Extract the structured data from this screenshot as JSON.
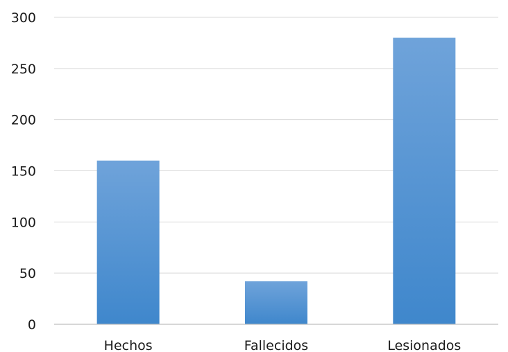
{
  "chart_data": {
    "type": "bar",
    "title": "",
    "xlabel": "",
    "ylabel": "",
    "categories": [
      "Hechos",
      "Fallecidos",
      "Lesionados"
    ],
    "values": [
      160,
      42,
      280
    ],
    "ylim": [
      0,
      300
    ],
    "yticks": [
      0,
      50,
      100,
      150,
      200,
      250,
      300
    ],
    "grid": true,
    "legend": "none",
    "bar_color_top": "#6fa3da",
    "bar_color_bottom": "#3f87cc",
    "gridline_color": "#d9d9d9",
    "axis_color": "#bfbfbf"
  }
}
